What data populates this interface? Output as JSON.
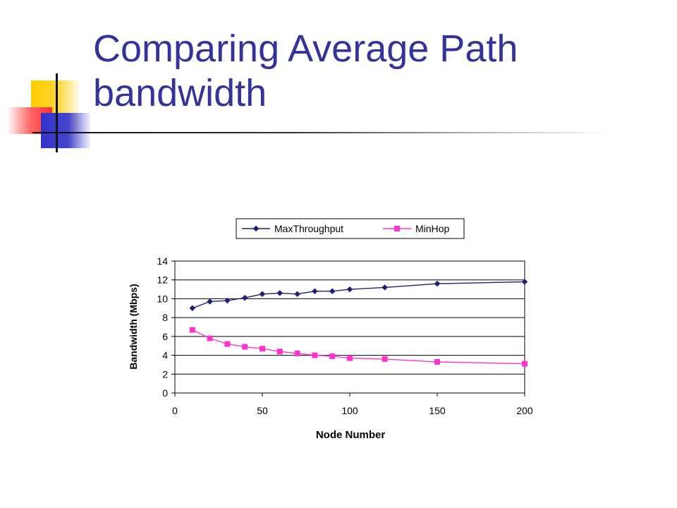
{
  "slide": {
    "title": "Comparing Average Path bandwidth"
  },
  "chart_data": {
    "type": "line",
    "title": "",
    "xlabel": "Node Number",
    "ylabel": "Bandwidth (Mbps)",
    "xlim": [
      0,
      200
    ],
    "ylim": [
      0,
      14
    ],
    "x_ticks": [
      0,
      50,
      100,
      150,
      200
    ],
    "y_ticks": [
      0,
      2,
      4,
      6,
      8,
      10,
      12,
      14
    ],
    "grid": "horizontal",
    "legend_position": "top",
    "series": [
      {
        "name": "MaxThroughput",
        "color": "#1f1f7a",
        "marker": "diamond",
        "x": [
          10,
          20,
          30,
          40,
          50,
          60,
          70,
          80,
          90,
          100,
          120,
          150,
          200
        ],
        "y": [
          9.0,
          9.7,
          9.8,
          10.1,
          10.5,
          10.6,
          10.5,
          10.8,
          10.8,
          11.0,
          11.2,
          11.6,
          11.8
        ]
      },
      {
        "name": "MinHop",
        "color": "#ff33cc",
        "marker": "square",
        "x": [
          10,
          20,
          30,
          40,
          50,
          60,
          70,
          80,
          90,
          100,
          120,
          150,
          200
        ],
        "y": [
          6.7,
          5.8,
          5.2,
          4.9,
          4.7,
          4.4,
          4.2,
          4.0,
          3.9,
          3.7,
          3.6,
          3.3,
          3.1
        ]
      }
    ]
  }
}
